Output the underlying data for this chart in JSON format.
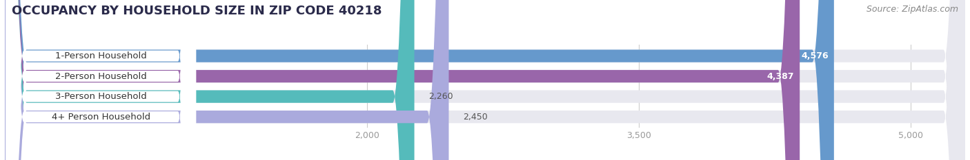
{
  "title": "OCCUPANCY BY HOUSEHOLD SIZE IN ZIP CODE 40218",
  "source": "Source: ZipAtlas.com",
  "categories": [
    "1-Person Household",
    "2-Person Household",
    "3-Person Household",
    "4+ Person Household"
  ],
  "values": [
    4576,
    4387,
    2260,
    2450
  ],
  "bar_colors": [
    "#6699cc",
    "#9966aa",
    "#55bbbb",
    "#aaaadd"
  ],
  "xlim_min": 0,
  "xlim_max": 5300,
  "data_min": 0,
  "data_max": 5000,
  "xticks": [
    2000,
    3500,
    5000
  ],
  "xticklabels": [
    "2,000",
    "3,500",
    "5,000"
  ],
  "background_color": "#ffffff",
  "bar_bg_color": "#e8e8ef",
  "title_fontsize": 13,
  "source_fontsize": 9,
  "label_fontsize": 9.5,
  "value_fontsize": 9,
  "bar_height": 0.62,
  "label_color": "#333333",
  "label_bg_color": "#ffffff",
  "value_color_inside": "#ffffff",
  "value_color_outside": "#555555",
  "grid_color": "#cccccc",
  "tick_color": "#999999"
}
